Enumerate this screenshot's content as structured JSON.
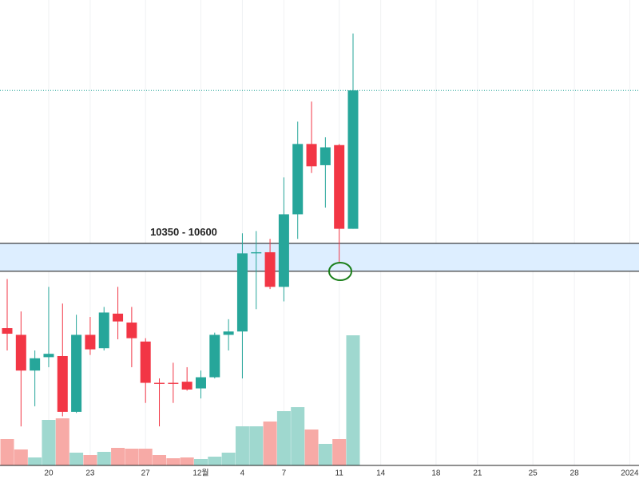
{
  "chart_data": {
    "type": "candlestick",
    "categories": [
      null,
      null,
      null,
      "20",
      null,
      null,
      "23",
      null,
      null,
      null,
      "27",
      null,
      null,
      null,
      "12월",
      null,
      null,
      "4",
      null,
      null,
      "7",
      null,
      null,
      null,
      "11",
      null,
      null,
      "14",
      null,
      null,
      null,
      "18",
      null,
      null,
      "21",
      null,
      null,
      null,
      "25",
      null,
      null,
      "28",
      null,
      null,
      null,
      "2024"
    ],
    "open": [
      9840,
      9780,
      9460,
      9580,
      9590,
      9090,
      9780,
      9660,
      9970,
      9890,
      9720,
      9350,
      9350,
      9360,
      9300,
      9400,
      9780,
      9810,
      10510,
      10520,
      10210,
      10860,
      11490,
      11300,
      11480,
      10730,
      null,
      null,
      null,
      null,
      null,
      null,
      null,
      null,
      null,
      null,
      null,
      null,
      null,
      null,
      null,
      null,
      null,
      null,
      null,
      null
    ],
    "high": [
      10280,
      9990,
      9640,
      10210,
      10060,
      9960,
      9940,
      10030,
      10210,
      10030,
      9750,
      9390,
      9530,
      9490,
      9460,
      9800,
      9920,
      10690,
      10710,
      10640,
      11190,
      11690,
      11870,
      11550,
      11490,
      12480,
      null,
      null,
      null,
      null,
      null,
      null,
      null,
      null,
      null,
      null,
      null,
      null,
      null,
      null,
      null,
      null,
      null,
      null,
      null,
      null
    ],
    "low": [
      9640,
      8960,
      9140,
      9490,
      9050,
      9080,
      9600,
      9640,
      9740,
      9490,
      9170,
      8960,
      9170,
      9280,
      9210,
      9390,
      9640,
      9390,
      10010,
      10190,
      10080,
      10640,
      11230,
      10920,
      10420,
      10730,
      null,
      null,
      null,
      null,
      null,
      null,
      null,
      null,
      null,
      null,
      null,
      null,
      null,
      null,
      null,
      null,
      null,
      null,
      null,
      null
    ],
    "close": [
      9790,
      9460,
      9570,
      9610,
      9090,
      9780,
      9650,
      9980,
      9900,
      9750,
      9350,
      9340,
      9340,
      9290,
      9400,
      9780,
      9810,
      10510,
      10520,
      10210,
      10860,
      11490,
      11290,
      11460,
      10730,
      11970,
      null,
      null,
      null,
      null,
      null,
      null,
      null,
      null,
      null,
      null,
      null,
      null,
      null,
      null,
      null,
      null,
      null,
      null,
      null,
      null
    ],
    "volume": [
      33,
      20,
      10,
      57,
      59,
      16,
      13,
      17,
      22,
      21,
      21,
      13,
      9,
      10,
      8,
      11,
      16,
      49,
      49,
      55,
      68,
      73,
      45,
      27,
      33,
      163,
      null,
      null,
      null,
      null,
      null,
      null,
      null,
      null,
      null,
      null,
      null,
      null,
      null,
      null,
      null,
      null,
      null,
      null,
      null,
      null
    ],
    "ylim": [
      8610,
      12780
    ],
    "zone": {
      "label": "10350 - 10600",
      "low": 10350,
      "high": 10600
    },
    "up_color": "#26a69a",
    "down_color": "#f23645",
    "up_volume_color": "#9fd8cf",
    "down_volume_color": "#f7aaa6"
  }
}
